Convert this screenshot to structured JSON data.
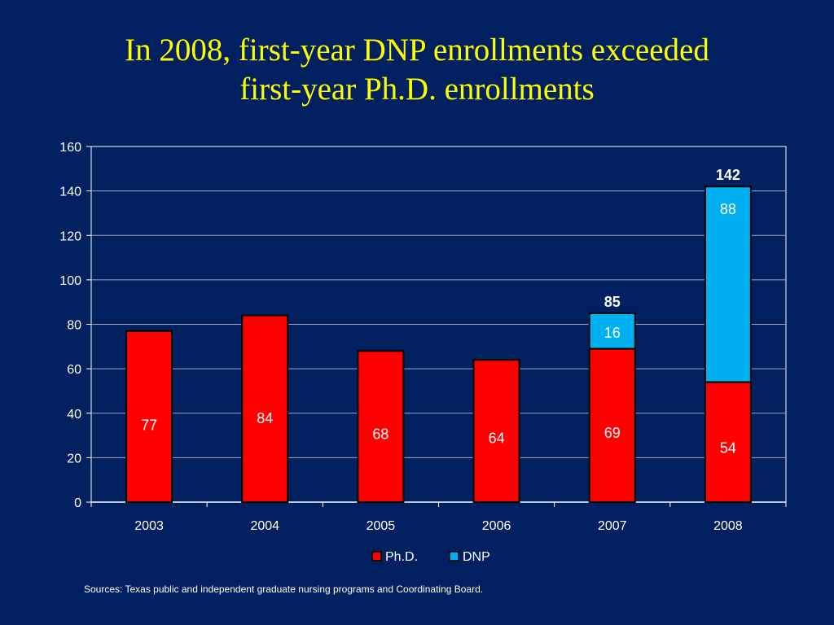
{
  "slide": {
    "title_line1": "In 2008, first-year DNP enrollments exceeded",
    "title_line2": "first-year Ph.D. enrollments",
    "source": "Sources: Texas public and independent graduate nursing programs and Coordinating Board."
  },
  "colors": {
    "background": "#00205f",
    "title": "#ffff00",
    "phd": "#ff0000",
    "dnp": "#00b0f0"
  },
  "chart_data": {
    "type": "bar",
    "stacked": true,
    "categories": [
      "2003",
      "2004",
      "2005",
      "2006",
      "2007",
      "2008"
    ],
    "series": [
      {
        "name": "Ph.D.",
        "values": [
          77,
          84,
          68,
          64,
          69,
          54
        ]
      },
      {
        "name": "DNP",
        "values": [
          0,
          0,
          0,
          0,
          16,
          88
        ]
      }
    ],
    "totals": [
      {
        "category": "2007",
        "label": "85"
      },
      {
        "category": "2008",
        "label": "142"
      }
    ],
    "ylim": [
      0,
      160
    ],
    "yticks": [
      "0",
      "20",
      "40",
      "60",
      "80",
      "100",
      "120",
      "140",
      "160"
    ],
    "grid": true,
    "legend": "bottom",
    "title": "",
    "xlabel": "",
    "ylabel": ""
  }
}
